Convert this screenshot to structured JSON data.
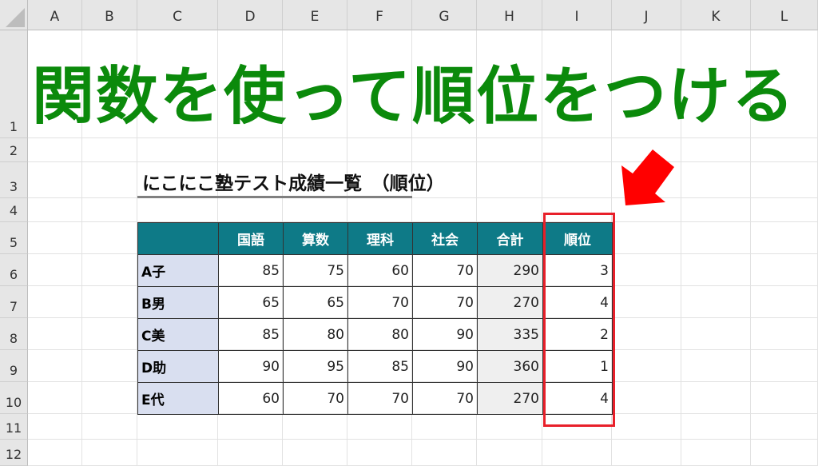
{
  "columns": [
    "A",
    "B",
    "C",
    "D",
    "E",
    "F",
    "G",
    "H",
    "I",
    "J",
    "K",
    "L"
  ],
  "rows": [
    "1",
    "2",
    "3",
    "4",
    "5",
    "6",
    "7",
    "8",
    "9",
    "10",
    "11",
    "12"
  ],
  "banner": "関数を使って順位をつける",
  "subtitle": "にこにこ塾テスト成績一覧　（順位）",
  "table": {
    "headers": [
      "",
      "国語",
      "算数",
      "理科",
      "社会",
      "合計",
      "順位"
    ],
    "rows": [
      {
        "name": "A子",
        "values": [
          "85",
          "75",
          "60",
          "70",
          "290",
          "3"
        ]
      },
      {
        "name": "B男",
        "values": [
          "65",
          "65",
          "70",
          "70",
          "270",
          "4"
        ]
      },
      {
        "name": "C美",
        "values": [
          "85",
          "80",
          "80",
          "90",
          "335",
          "2"
        ]
      },
      {
        "name": "D助",
        "values": [
          "90",
          "95",
          "85",
          "90",
          "360",
          "1"
        ]
      },
      {
        "name": "E代",
        "values": [
          "60",
          "70",
          "70",
          "70",
          "270",
          "4"
        ]
      }
    ]
  },
  "colors": {
    "header": "#0e7a87",
    "name_col": "#d9dff0",
    "total_col": "#efefef",
    "banner": "#0b8a0b",
    "highlight": "#e8202a",
    "arrow": "#ff0000"
  },
  "icons": {
    "arrow": "red-arrow-down-left-icon"
  }
}
